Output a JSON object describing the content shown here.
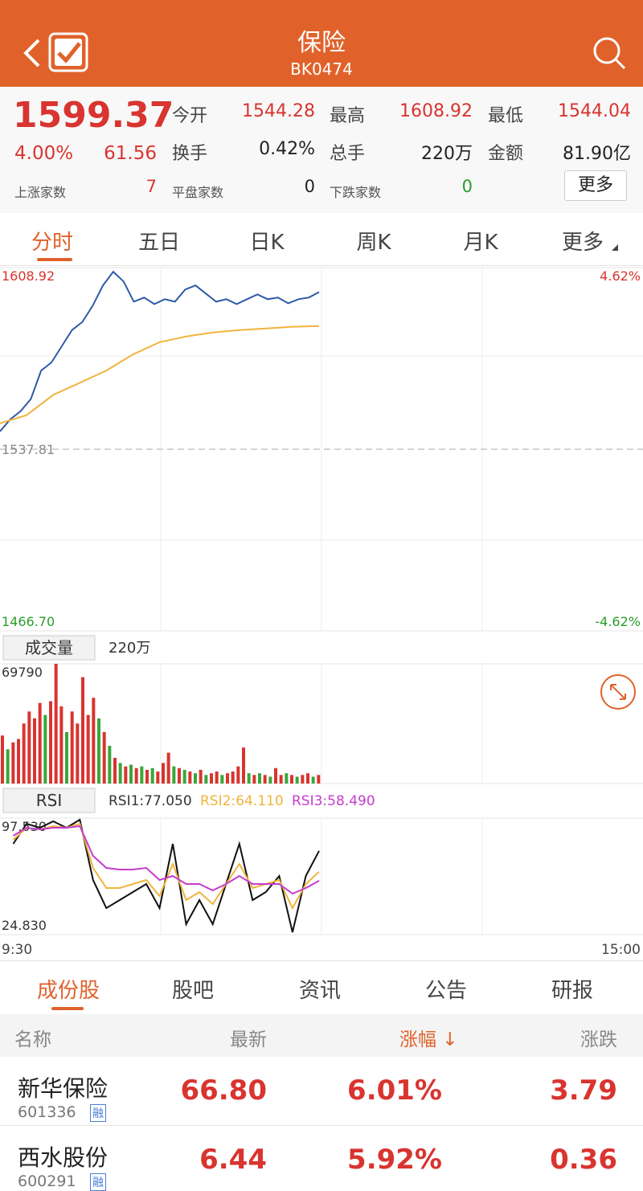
{
  "header": {
    "title": "保险",
    "code": "BK0474"
  },
  "quote": {
    "price": "1599.37",
    "change_pct": "4.00%",
    "change": "61.56",
    "stats": [
      {
        "label": "今开",
        "value": "1544.28"
      },
      {
        "label": "最高",
        "value": "1608.92"
      },
      {
        "label": "最低",
        "value": "1544.04"
      },
      {
        "label": "换手",
        "value": "0.42%"
      },
      {
        "label": "总手",
        "value": "220万"
      },
      {
        "label": "金额",
        "value": "81.90亿"
      }
    ],
    "counts": [
      {
        "label": "上涨家数",
        "value": "7"
      },
      {
        "label": "平盘家数",
        "value": "0"
      },
      {
        "label": "下跌家数",
        "value": "0"
      }
    ],
    "more": "更多"
  },
  "tabs": [
    "分时",
    "五日",
    "日K",
    "周K",
    "月K",
    "更多"
  ],
  "chart_data": [
    {
      "type": "line",
      "series": [
        {
          "color": "#2f5aa8",
          "values": [
            1544.79,
            1549.56,
            1552.73,
            1557.49,
            1568.6,
            1571.78,
            1578.13,
            1584.48,
            1587.65,
            1594.0,
            1601.94,
            1607.33,
            1603.52,
            1595.59,
            1597.18,
            1594.64,
            1596.54,
            1595.59,
            1600.35,
            1601.94,
            1598.76,
            1595.59,
            1596.54,
            1594.64,
            1596.54,
            1598.45,
            1596.54,
            1597.18,
            1594.95,
            1596.54,
            1597.18,
            1599.37
          ]
        },
        {
          "color": "#f0b43c",
          "values": [
            1547.97,
            1551.14,
            1559.08,
            1563.84,
            1568.6,
            1574.95,
            1579.71,
            1581.94,
            1583.52,
            1584.48,
            1585.11,
            1585.75,
            1586.06
          ]
        }
      ],
      "ylim": [
        1466.7,
        1608.92
      ],
      "yticks": [
        1608.92,
        1537.81,
        {
          "value": 1466.7,
          "label": "1466.70"
        }
      ],
      "y2lim": [
        -4.62,
        4.62
      ],
      "y2ticks": [
        {
          "value": 4.62,
          "label": "4.62%"
        },
        {
          "value": -4.62,
          "label": "-4.62%"
        }
      ]
    },
    {
      "type": "bar",
      "values": [
        28000,
        20000,
        24000,
        26000,
        35000,
        42000,
        38000,
        47000,
        40000,
        48000,
        69790,
        45000,
        30000,
        42000,
        35000,
        62000,
        40000,
        50000,
        38000,
        30000,
        22000,
        15000,
        12000,
        10000,
        11000,
        9000,
        10000,
        8000,
        9000,
        7000,
        12000,
        18000,
        10000,
        9000,
        8000,
        7000,
        6000,
        8000,
        5000,
        6000,
        7000,
        5000,
        6000,
        7000,
        10000,
        21000,
        6000,
        5000,
        6000,
        5000,
        4000,
        9000,
        5000,
        6000,
        5000,
        4000,
        5000,
        6000,
        4000,
        5000
      ],
      "colors": [
        "#d9342f",
        "#3aa63a",
        "#d9342f",
        "#d9342f",
        "#d9342f",
        "#d9342f",
        "#d9342f",
        "#d9342f",
        "#3aa63a",
        "#d9342f",
        "#d9342f",
        "#d9342f",
        "#3aa63a",
        "#d9342f",
        "#d9342f",
        "#d9342f",
        "#d9342f",
        "#d9342f",
        "#3aa63a",
        "#d9342f",
        "#3aa63a",
        "#d9342f",
        "#3aa63a",
        "#d9342f",
        "#3aa63a",
        "#d9342f",
        "#3aa63a",
        "#d9342f",
        "#3aa63a",
        "#d9342f",
        "#d9342f",
        "#d9342f",
        "#3aa63a",
        "#d9342f",
        "#3aa63a",
        "#d9342f",
        "#3aa63a",
        "#d9342f",
        "#3aa63a",
        "#d9342f",
        "#d9342f",
        "#3aa63a",
        "#d9342f",
        "#d9342f",
        "#d9342f",
        "#d9342f",
        "#3aa63a",
        "#d9342f",
        "#3aa63a",
        "#d9342f",
        "#3aa63a",
        "#d9342f",
        "#d9342f",
        "#3aa63a",
        "#d9342f",
        "#3aa63a",
        "#d9342f",
        "#d9342f",
        "#3aa63a",
        "#d9342f"
      ],
      "ylim": [
        0,
        69790
      ],
      "yticks": [
        69790
      ]
    },
    {
      "type": "line",
      "series": [
        {
          "color": "#111111",
          "values": [
            null,
            81.49,
            94.02,
            91.51,
            95.52,
            91.51,
            96.53,
            58.92,
            41.37,
            46.39,
            51.4,
            56.42,
            41.37,
            81.49,
            31.35,
            46.39,
            31.35,
            56.42,
            81.49,
            46.39,
            51.4,
            61.43,
            26.33,
            61.43,
            77.05
          ]
        },
        {
          "color": "#f0b43c",
          "values": [
            null,
            83.99,
            91.51,
            90.51,
            92.52,
            91.51,
            94.02,
            66.44,
            53.91,
            53.91,
            56.42,
            58.92,
            48.89,
            68.95,
            46.39,
            51.4,
            43.88,
            56.42,
            68.95,
            53.91,
            56.42,
            58.92,
            41.37,
            56.42,
            64.11
          ]
        },
        {
          "color": "#c43ccf",
          "values": [
            null,
            86.5,
            91.51,
            90.51,
            91.51,
            91.51,
            92.52,
            73.96,
            66.44,
            65.44,
            65.44,
            66.44,
            58.92,
            61.43,
            56.42,
            56.42,
            52.4,
            56.42,
            61.43,
            56.42,
            56.42,
            56.42,
            50.4,
            53.91,
            58.49
          ]
        }
      ],
      "ylim": [
        24.83,
        97.53
      ],
      "yticks": [
        {
          "value": 97.53,
          "label": "97.530"
        },
        {
          "value": 24.83,
          "label": "24.830"
        }
      ]
    }
  ],
  "volume_panel": {
    "label": "成交量",
    "total": "220万"
  },
  "rsi_panel": {
    "label": "RSI",
    "items": [
      "RSI1:77.050",
      "RSI2:64.110",
      "RSI3:58.490"
    ]
  },
  "time_axis": [
    "9:30",
    "15:00"
  ],
  "sub_tabs": [
    "成份股",
    "股吧",
    "资讯",
    "公告",
    "研报"
  ],
  "table": {
    "columns": [
      "名称",
      "最新",
      "涨幅 ↓",
      "涨跌"
    ],
    "rows": [
      [
        "新华保险",
        "601336",
        "融",
        "66.80",
        "6.01%",
        "3.79"
      ],
      [
        "西水股份",
        "600291",
        "融",
        "6.44",
        "5.92%",
        "0.36"
      ]
    ]
  }
}
